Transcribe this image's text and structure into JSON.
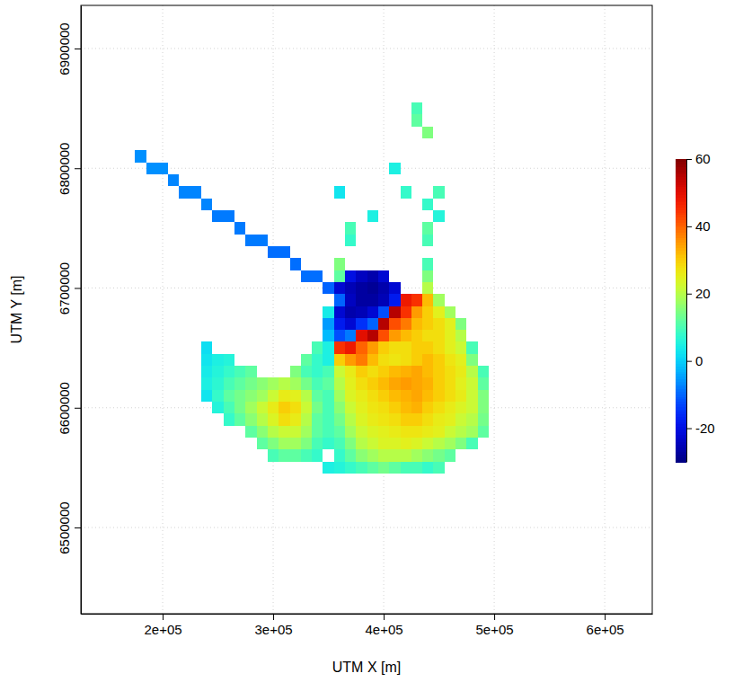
{
  "chart_data": {
    "type": "heatmap",
    "xlabel": "UTM X [m]",
    "ylabel": "UTM Y [m]",
    "xlim": [
      126000,
      643000
    ],
    "ylim": [
      6428000,
      6936000
    ],
    "xticks": [
      {
        "value": 200000,
        "label": "2e+05"
      },
      {
        "value": 300000,
        "label": "3e+05"
      },
      {
        "value": 400000,
        "label": "4e+05"
      },
      {
        "value": 500000,
        "label": "5e+05"
      },
      {
        "value": 600000,
        "label": "6e+05"
      }
    ],
    "yticks": [
      6500000,
      6600000,
      6700000,
      6800000,
      6900000
    ],
    "grid": true,
    "zlim": [
      -30,
      60
    ],
    "zticks": [
      -20,
      0,
      20,
      40,
      60
    ],
    "x": [
      180000,
      190000,
      200000,
      210000,
      220000,
      230000,
      240000,
      250000,
      260000,
      270000,
      280000,
      290000,
      300000,
      310000,
      320000,
      330000,
      340000,
      350000,
      360000,
      370000,
      380000,
      390000,
      400000,
      410000,
      420000,
      430000,
      440000,
      450000,
      460000,
      470000,
      480000,
      490000
    ],
    "y": [
      6850000,
      6840000,
      6830000,
      6820000,
      6810000,
      6800000,
      6790000,
      6780000,
      6770000,
      6760000,
      6750000,
      6740000,
      6730000,
      6720000,
      6710000,
      6700000,
      6690000,
      6680000,
      6670000,
      6660000,
      6650000,
      6640000,
      6630000,
      6620000,
      6610000,
      6600000,
      6590000,
      6580000,
      6570000,
      6560000,
      6550000
    ],
    "z": [
      [
        null,
        null,
        null,
        null,
        null,
        null,
        null,
        null,
        null,
        null,
        null,
        null,
        null,
        null,
        null,
        null,
        null,
        null,
        null,
        null,
        null,
        null,
        null,
        null,
        null,
        10,
        null,
        null,
        null,
        null,
        null,
        null
      ],
      [
        null,
        null,
        null,
        null,
        null,
        null,
        null,
        null,
        null,
        null,
        null,
        null,
        null,
        null,
        null,
        null,
        null,
        null,
        null,
        null,
        null,
        null,
        null,
        null,
        null,
        12,
        null,
        null,
        null,
        null,
        null,
        null
      ],
      [
        null,
        null,
        null,
        null,
        null,
        null,
        null,
        null,
        null,
        null,
        null,
        null,
        null,
        null,
        null,
        null,
        null,
        null,
        null,
        null,
        null,
        null,
        null,
        null,
        null,
        null,
        15,
        null,
        null,
        null,
        null,
        null
      ],
      [
        null,
        null,
        null,
        null,
        null,
        null,
        null,
        null,
        null,
        null,
        null,
        null,
        null,
        null,
        null,
        null,
        null,
        null,
        null,
        null,
        null,
        null,
        null,
        null,
        null,
        null,
        null,
        null,
        null,
        null,
        null,
        null
      ],
      [
        -6,
        null,
        null,
        null,
        null,
        null,
        null,
        null,
        null,
        null,
        null,
        null,
        null,
        null,
        null,
        null,
        null,
        null,
        null,
        null,
        null,
        null,
        null,
        null,
        null,
        null,
        null,
        null,
        null,
        null,
        null,
        null
      ],
      [
        null,
        -6,
        -6,
        null,
        null,
        null,
        null,
        null,
        null,
        null,
        null,
        null,
        null,
        null,
        null,
        null,
        null,
        null,
        null,
        null,
        null,
        null,
        null,
        5,
        null,
        null,
        null,
        null,
        null,
        null,
        null,
        null
      ],
      [
        null,
        null,
        null,
        -7,
        null,
        null,
        null,
        null,
        null,
        null,
        null,
        null,
        null,
        null,
        null,
        null,
        null,
        null,
        null,
        null,
        null,
        null,
        null,
        null,
        null,
        null,
        null,
        null,
        null,
        null,
        null,
        null
      ],
      [
        null,
        null,
        null,
        null,
        -7,
        -7,
        null,
        null,
        null,
        null,
        null,
        null,
        null,
        null,
        null,
        null,
        null,
        null,
        3,
        null,
        null,
        null,
        null,
        null,
        8,
        null,
        null,
        10,
        null,
        null,
        null,
        null
      ],
      [
        null,
        null,
        null,
        null,
        null,
        null,
        -7,
        null,
        null,
        null,
        null,
        null,
        null,
        null,
        null,
        null,
        null,
        null,
        null,
        null,
        null,
        null,
        null,
        null,
        null,
        null,
        8,
        null,
        null,
        null,
        null,
        null
      ],
      [
        null,
        null,
        null,
        null,
        null,
        null,
        null,
        -8,
        -8,
        null,
        null,
        null,
        null,
        null,
        null,
        null,
        null,
        null,
        null,
        null,
        null,
        5,
        null,
        null,
        null,
        null,
        null,
        6,
        null,
        null,
        null,
        null
      ],
      [
        null,
        null,
        null,
        null,
        null,
        null,
        null,
        null,
        null,
        -8,
        null,
        null,
        null,
        null,
        null,
        null,
        null,
        null,
        null,
        10,
        null,
        null,
        null,
        null,
        null,
        null,
        12,
        null,
        null,
        null,
        null,
        null
      ],
      [
        null,
        null,
        null,
        null,
        null,
        null,
        null,
        null,
        null,
        null,
        -8,
        -8,
        null,
        null,
        null,
        null,
        null,
        null,
        null,
        8,
        null,
        null,
        null,
        null,
        null,
        null,
        10,
        null,
        null,
        null,
        null,
        null
      ],
      [
        null,
        null,
        null,
        null,
        null,
        null,
        null,
        null,
        null,
        null,
        null,
        null,
        -9,
        -9,
        null,
        null,
        null,
        null,
        null,
        null,
        null,
        null,
        null,
        null,
        null,
        null,
        null,
        null,
        null,
        null,
        null,
        null
      ],
      [
        null,
        null,
        null,
        null,
        null,
        null,
        null,
        null,
        null,
        null,
        null,
        null,
        null,
        null,
        -9,
        null,
        null,
        null,
        15,
        null,
        null,
        null,
        null,
        null,
        null,
        null,
        10,
        null,
        null,
        null,
        null,
        null
      ],
      [
        null,
        null,
        null,
        null,
        null,
        null,
        null,
        null,
        null,
        null,
        null,
        null,
        null,
        null,
        null,
        -9,
        -9,
        null,
        12,
        -20,
        -24,
        -26,
        -22,
        null,
        null,
        null,
        15,
        null,
        null,
        null,
        null,
        null
      ],
      [
        null,
        null,
        null,
        null,
        null,
        null,
        null,
        null,
        null,
        null,
        null,
        null,
        null,
        null,
        null,
        null,
        null,
        -10,
        -22,
        -25,
        -27,
        -28,
        -26,
        -22,
        null,
        null,
        20,
        null,
        null,
        null,
        null,
        null
      ],
      [
        null,
        null,
        null,
        null,
        null,
        null,
        null,
        null,
        null,
        null,
        null,
        null,
        null,
        null,
        null,
        null,
        null,
        null,
        -10,
        -24,
        -27,
        -27,
        -25,
        -18,
        48,
        45,
        32,
        18,
        null,
        null,
        null,
        null
      ],
      [
        null,
        null,
        null,
        null,
        null,
        null,
        null,
        null,
        null,
        null,
        null,
        null,
        null,
        null,
        null,
        null,
        null,
        4,
        -22,
        -26,
        -25,
        -22,
        -12,
        55,
        45,
        35,
        30,
        25,
        18,
        null,
        null,
        null
      ],
      [
        null,
        null,
        null,
        null,
        null,
        null,
        null,
        null,
        null,
        null,
        null,
        null,
        null,
        null,
        null,
        null,
        null,
        -5,
        -18,
        -22,
        -15,
        -10,
        55,
        42,
        38,
        32,
        30,
        28,
        25,
        15,
        null,
        null
      ],
      [
        null,
        null,
        null,
        null,
        null,
        null,
        null,
        null,
        null,
        null,
        null,
        null,
        null,
        null,
        null,
        null,
        null,
        -2,
        -12,
        -8,
        50,
        55,
        42,
        35,
        32,
        30,
        28,
        28,
        25,
        20,
        null,
        null
      ],
      [
        null,
        null,
        null,
        null,
        null,
        null,
        2,
        null,
        null,
        null,
        null,
        null,
        null,
        null,
        null,
        null,
        10,
        5,
        45,
        48,
        40,
        35,
        30,
        28,
        28,
        30,
        30,
        28,
        25,
        22,
        10,
        null
      ],
      [
        null,
        null,
        null,
        null,
        null,
        null,
        3,
        5,
        6,
        null,
        null,
        null,
        null,
        null,
        null,
        12,
        8,
        5,
        30,
        35,
        38,
        32,
        28,
        27,
        28,
        30,
        32,
        30,
        27,
        25,
        15,
        null
      ],
      [
        null,
        null,
        null,
        null,
        null,
        null,
        4,
        6,
        8,
        10,
        12,
        null,
        null,
        null,
        15,
        10,
        8,
        10,
        22,
        26,
        30,
        28,
        30,
        32,
        33,
        34,
        32,
        30,
        28,
        26,
        20,
        10
      ],
      [
        null,
        null,
        null,
        null,
        null,
        null,
        5,
        7,
        10,
        12,
        14,
        16,
        18,
        20,
        18,
        14,
        10,
        12,
        20,
        25,
        28,
        30,
        32,
        34,
        35,
        34,
        33,
        30,
        28,
        25,
        22,
        12
      ],
      [
        null,
        null,
        null,
        null,
        null,
        null,
        3,
        8,
        12,
        14,
        16,
        18,
        22,
        26,
        25,
        20,
        12,
        10,
        18,
        24,
        26,
        28,
        30,
        32,
        33,
        34,
        32,
        30,
        28,
        26,
        22,
        15
      ],
      [
        null,
        null,
        null,
        null,
        null,
        null,
        null,
        6,
        10,
        14,
        18,
        22,
        26,
        30,
        28,
        22,
        14,
        10,
        16,
        22,
        25,
        27,
        28,
        30,
        32,
        33,
        30,
        28,
        26,
        24,
        22,
        15
      ],
      [
        null,
        null,
        null,
        null,
        null,
        null,
        null,
        null,
        8,
        12,
        16,
        20,
        24,
        28,
        26,
        20,
        12,
        10,
        14,
        20,
        24,
        26,
        27,
        28,
        30,
        30,
        28,
        26,
        25,
        22,
        20,
        14
      ],
      [
        null,
        null,
        null,
        null,
        null,
        null,
        null,
        null,
        null,
        null,
        12,
        16,
        20,
        22,
        22,
        18,
        12,
        10,
        12,
        18,
        22,
        24,
        25,
        26,
        27,
        27,
        26,
        25,
        22,
        20,
        18,
        12
      ],
      [
        null,
        null,
        null,
        null,
        null,
        null,
        null,
        null,
        null,
        null,
        null,
        12,
        15,
        18,
        18,
        15,
        10,
        8,
        10,
        15,
        20,
        22,
        24,
        24,
        25,
        24,
        22,
        20,
        18,
        15,
        10,
        null
      ],
      [
        null,
        null,
        null,
        null,
        null,
        null,
        null,
        null,
        null,
        null,
        null,
        null,
        10,
        12,
        12,
        10,
        8,
        null,
        8,
        12,
        16,
        18,
        20,
        20,
        20,
        18,
        16,
        14,
        12,
        null,
        null,
        null
      ],
      [
        null,
        null,
        null,
        null,
        null,
        null,
        null,
        null,
        null,
        null,
        null,
        null,
        null,
        null,
        null,
        null,
        null,
        5,
        6,
        8,
        10,
        12,
        14,
        12,
        10,
        10,
        8,
        10,
        null,
        null,
        null,
        null
      ]
    ]
  }
}
